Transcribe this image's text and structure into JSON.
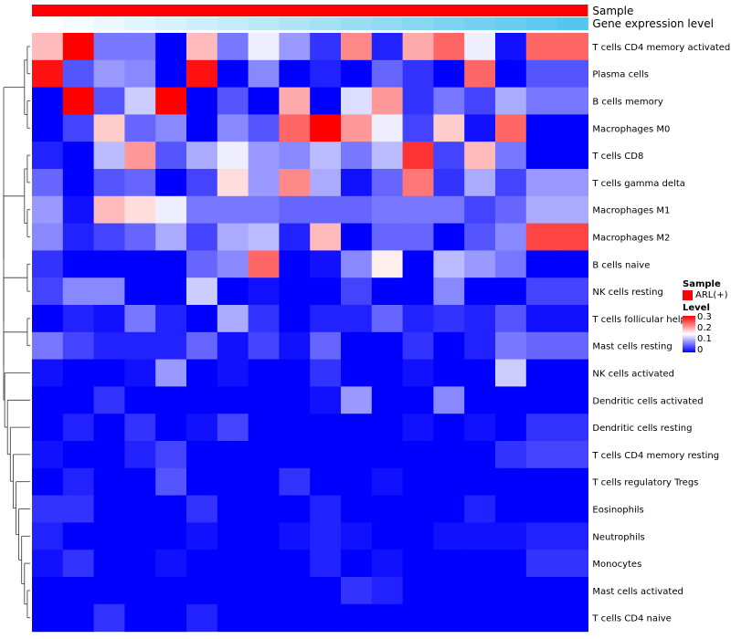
{
  "chart_data": {
    "type": "heatmap",
    "annotation_tracks": [
      {
        "name": "Sample",
        "color": "#ff0000",
        "legend_label": "ARL(+)"
      },
      {
        "name": "Gene expression level",
        "gradient": [
          "#ffffff",
          "#55c6ee"
        ]
      }
    ],
    "legend": {
      "sample_title": "Sample",
      "sample_entry": "ARL(+)",
      "level_title": "Level",
      "level_ticks": [
        "0.3",
        "0.2",
        "0.1",
        "0"
      ],
      "colors": {
        "low": "#0000ff",
        "mid": "#ffffff",
        "high": "#ff0000"
      },
      "range": [
        0,
        0.3
      ]
    },
    "rows": [
      "T cells CD4 memory activated",
      "Plasma cells",
      "B cells memory",
      "Macrophages M0",
      "T cells CD8",
      "T cells gamma delta",
      "Macrophages M1",
      "Macrophages M2",
      "B cells naive",
      "NK cells resting",
      "T cells follicular helper",
      "Mast cells resting",
      "NK cells activated",
      "Dendritic cells activated",
      "Dendritic cells resting",
      "T cells CD4 memory resting",
      "T cells regulatory  Tregs",
      "Eosinophils",
      "Neutrophils",
      "Monocytes",
      "Mast cells activated",
      "T cells CD4 naive"
    ],
    "n_columns": 18,
    "values": [
      [
        0.19,
        0.3,
        0.07,
        0.07,
        0.0,
        0.19,
        0.07,
        0.14,
        0.09,
        0.03,
        0.22,
        0.02,
        0.2,
        0.24,
        0.14,
        0.01,
        0.24,
        0.24
      ],
      [
        0.29,
        0.05,
        0.09,
        0.08,
        0.0,
        0.29,
        0.0,
        0.08,
        0.0,
        0.02,
        0.0,
        0.06,
        0.03,
        0.0,
        0.24,
        0.0,
        0.05,
        0.05
      ],
      [
        0.0,
        0.3,
        0.05,
        0.12,
        0.3,
        0.0,
        0.05,
        0.0,
        0.2,
        0.0,
        0.13,
        0.21,
        0.03,
        0.07,
        0.04,
        0.1,
        0.07,
        0.07
      ],
      [
        0.0,
        0.04,
        0.18,
        0.06,
        0.08,
        0.0,
        0.08,
        0.05,
        0.24,
        0.3,
        0.21,
        0.14,
        0.04,
        0.18,
        0.01,
        0.24,
        0.0,
        0.0
      ],
      [
        0.02,
        0.0,
        0.11,
        0.21,
        0.05,
        0.1,
        0.14,
        0.09,
        0.08,
        0.11,
        0.07,
        0.11,
        0.27,
        0.04,
        0.19,
        0.07,
        0.0,
        0.0
      ],
      [
        0.06,
        0.0,
        0.05,
        0.06,
        0.0,
        0.04,
        0.17,
        0.09,
        0.22,
        0.1,
        0.01,
        0.06,
        0.23,
        0.03,
        0.1,
        0.04,
        0.09,
        0.09
      ],
      [
        0.09,
        0.01,
        0.19,
        0.17,
        0.14,
        0.07,
        0.07,
        0.07,
        0.06,
        0.06,
        0.06,
        0.07,
        0.07,
        0.07,
        0.04,
        0.06,
        0.1,
        0.1
      ],
      [
        0.08,
        0.02,
        0.04,
        0.06,
        0.1,
        0.04,
        0.1,
        0.11,
        0.02,
        0.19,
        0.0,
        0.06,
        0.06,
        0.0,
        0.05,
        0.08,
        0.26,
        0.26
      ],
      [
        0.03,
        0.0,
        0.0,
        0.0,
        0.0,
        0.06,
        0.08,
        0.24,
        0.0,
        0.01,
        0.08,
        0.16,
        0.0,
        0.11,
        0.09,
        0.07,
        0.0,
        0.0
      ],
      [
        0.04,
        0.08,
        0.08,
        0.0,
        0.0,
        0.12,
        0.0,
        0.01,
        0.0,
        0.0,
        0.04,
        0.0,
        0.0,
        0.08,
        0.0,
        0.0,
        0.04,
        0.04
      ],
      [
        0.0,
        0.02,
        0.01,
        0.07,
        0.02,
        0.0,
        0.1,
        0.03,
        0.0,
        0.02,
        0.02,
        0.06,
        0.02,
        0.03,
        0.02,
        0.05,
        0.01,
        0.01
      ],
      [
        0.07,
        0.04,
        0.02,
        0.02,
        0.02,
        0.06,
        0.01,
        0.04,
        0.01,
        0.06,
        0.0,
        0.0,
        0.03,
        0.0,
        0.02,
        0.07,
        0.06,
        0.06
      ],
      [
        0.01,
        0.0,
        0.0,
        0.01,
        0.09,
        0.0,
        0.01,
        0.0,
        0.0,
        0.03,
        0.0,
        0.0,
        0.01,
        0.0,
        0.0,
        0.12,
        0.0,
        0.0
      ],
      [
        0.0,
        0.0,
        0.03,
        0.0,
        0.0,
        0.0,
        0.0,
        0.0,
        0.0,
        0.01,
        0.09,
        0.0,
        0.0,
        0.08,
        0.0,
        0.0,
        0.0,
        0.0
      ],
      [
        0.0,
        0.02,
        0.0,
        0.03,
        0.0,
        0.01,
        0.04,
        0.0,
        0.0,
        0.0,
        0.0,
        0.0,
        0.01,
        0.0,
        0.01,
        0.0,
        0.03,
        0.03
      ],
      [
        0.01,
        0.0,
        0.0,
        0.02,
        0.04,
        0.0,
        0.0,
        0.0,
        0.0,
        0.0,
        0.0,
        0.0,
        0.0,
        0.0,
        0.0,
        0.03,
        0.04,
        0.04
      ],
      [
        0.0,
        0.02,
        0.0,
        0.0,
        0.05,
        0.0,
        0.0,
        0.0,
        0.03,
        0.0,
        0.0,
        0.01,
        0.0,
        0.0,
        0.0,
        0.0,
        0.0,
        0.0
      ],
      [
        0.03,
        0.03,
        0.0,
        0.0,
        0.0,
        0.03,
        0.0,
        0.0,
        0.0,
        0.02,
        0.0,
        0.0,
        0.0,
        0.0,
        0.02,
        0.0,
        0.0,
        0.0
      ],
      [
        0.02,
        0.0,
        0.0,
        0.0,
        0.0,
        0.01,
        0.0,
        0.0,
        0.01,
        0.02,
        0.01,
        0.0,
        0.0,
        0.01,
        0.01,
        0.01,
        0.02,
        0.02
      ],
      [
        0.01,
        0.03,
        0.0,
        0.0,
        0.01,
        0.0,
        0.0,
        0.0,
        0.0,
        0.02,
        0.0,
        0.01,
        0.0,
        0.0,
        0.0,
        0.0,
        0.03,
        0.03
      ],
      [
        0.0,
        0.0,
        0.0,
        0.0,
        0.0,
        0.0,
        0.0,
        0.0,
        0.0,
        0.0,
        0.03,
        0.02,
        0.0,
        0.0,
        0.0,
        0.0,
        0.0,
        0.0
      ],
      [
        0.0,
        0.0,
        0.03,
        0.0,
        0.0,
        0.02,
        0.0,
        0.0,
        0.0,
        0.0,
        0.0,
        0.0,
        0.0,
        0.0,
        0.0,
        0.0,
        0.0,
        0.0
      ]
    ]
  }
}
